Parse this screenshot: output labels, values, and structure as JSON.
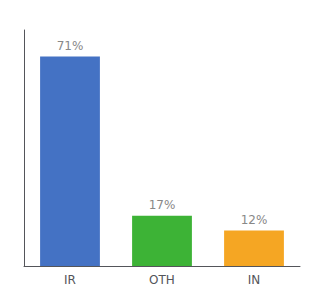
{
  "chart_data": {
    "type": "bar",
    "categories": [
      "IR",
      "OTH",
      "IN"
    ],
    "values": [
      71,
      17,
      12
    ],
    "colors": [
      "#4472c4",
      "#3db336",
      "#f5a623"
    ],
    "value_labels": [
      "71%",
      "17%",
      "12%"
    ],
    "data_labels": true,
    "ylim": [
      0,
      80
    ],
    "tick_labels": "x",
    "grid": false
  }
}
